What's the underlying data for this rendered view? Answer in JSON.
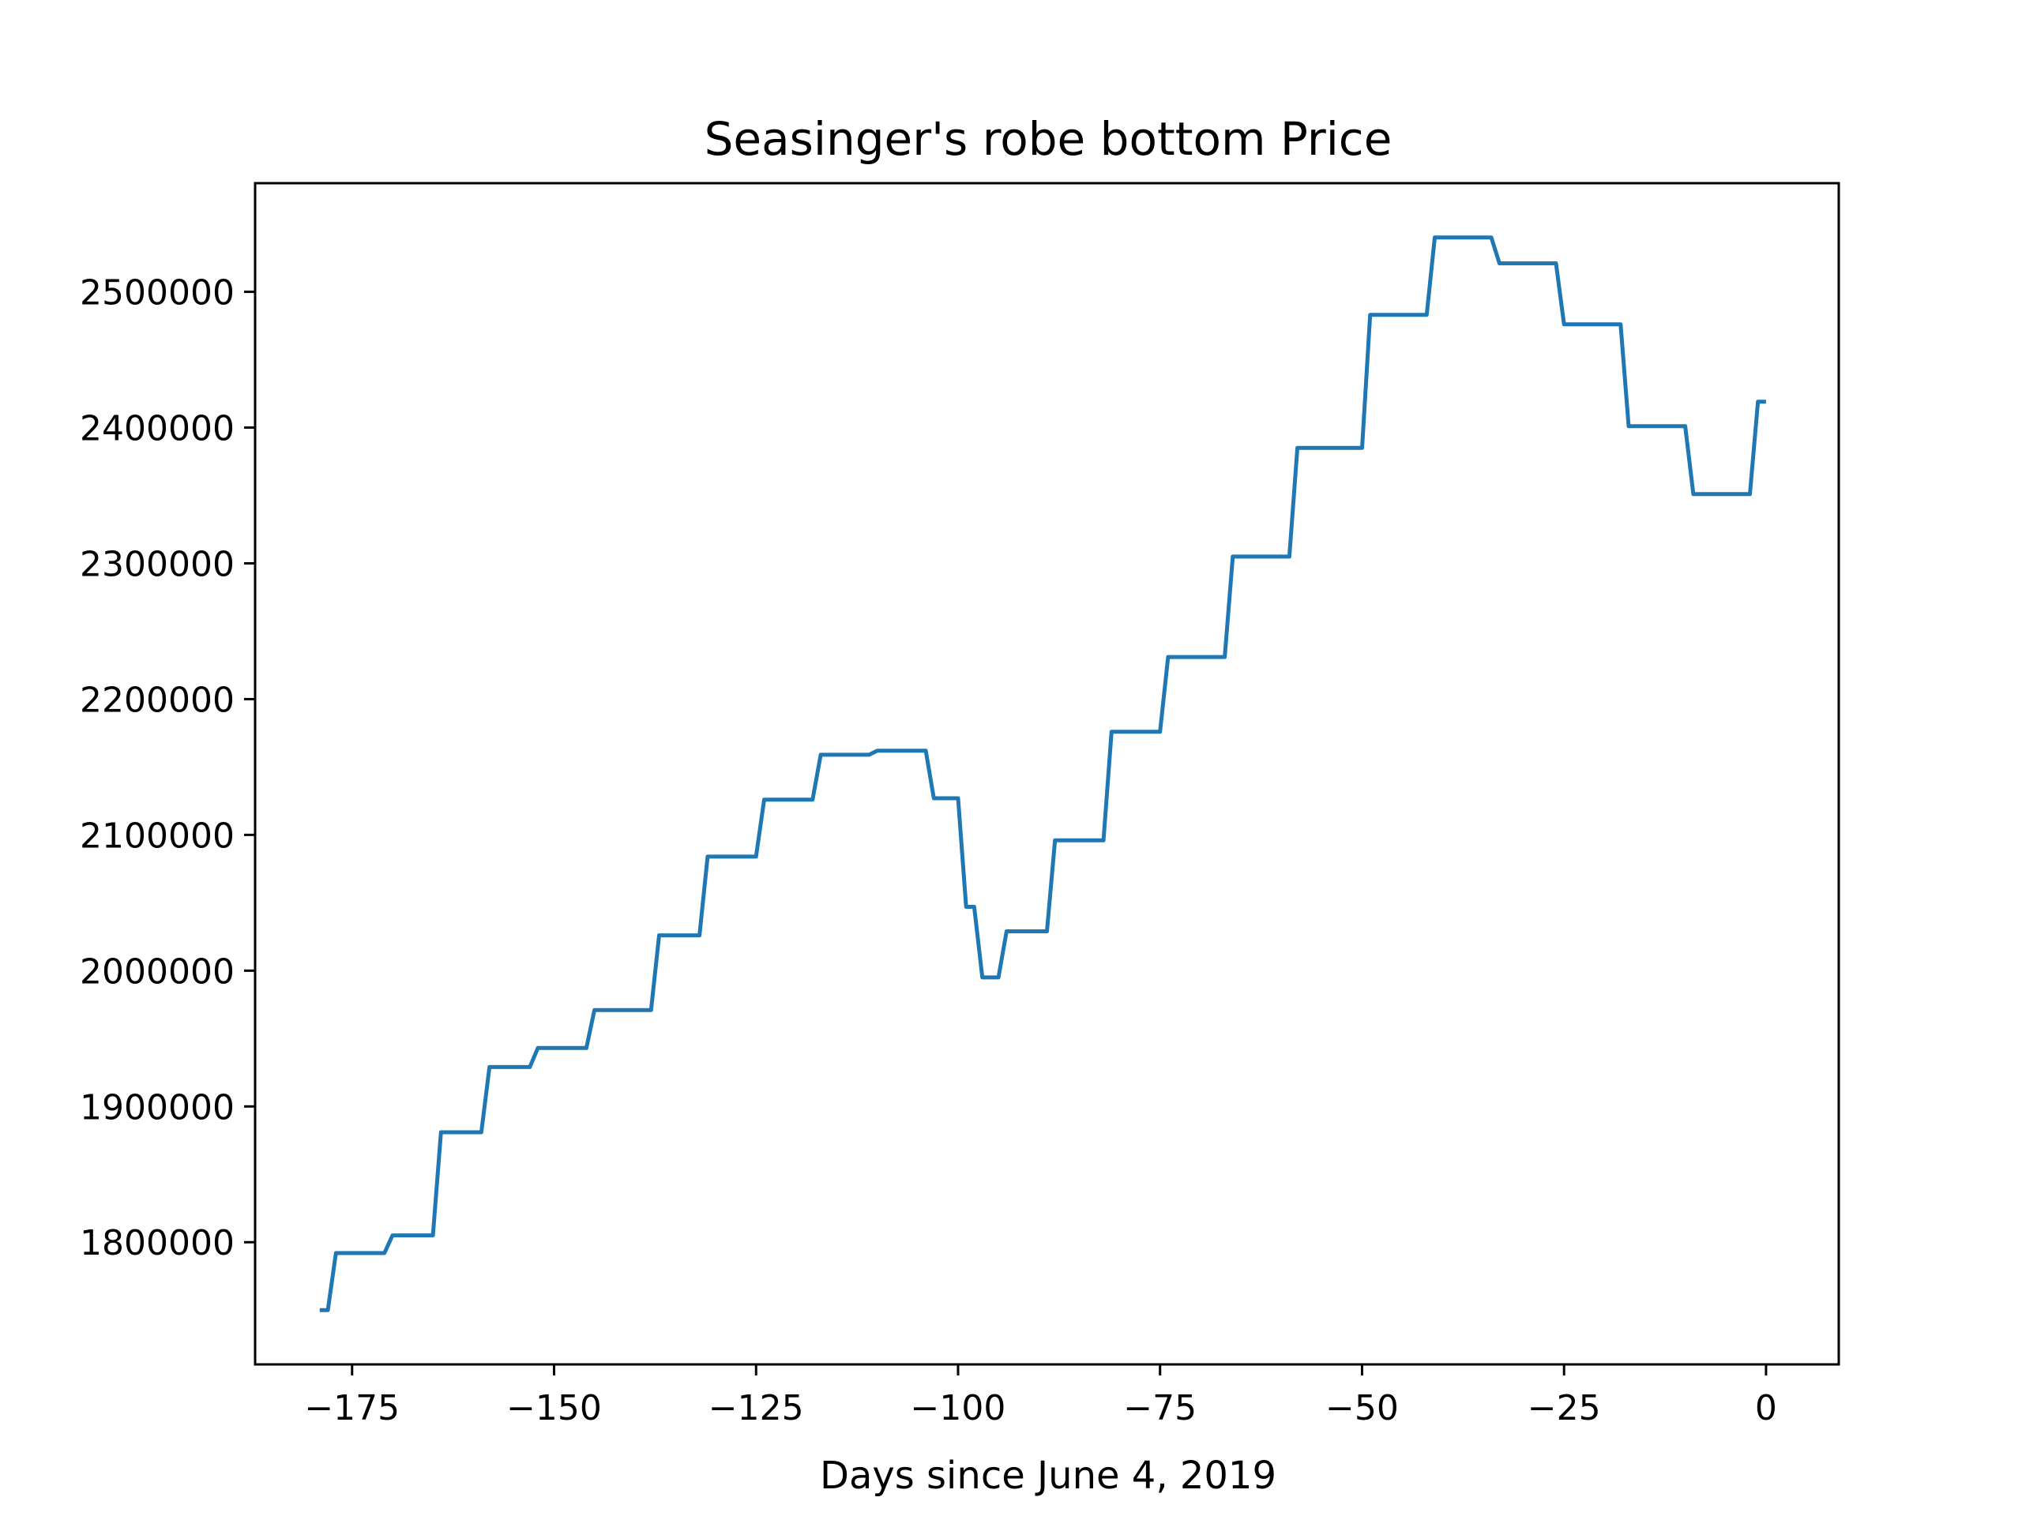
{
  "chart_data": {
    "type": "line",
    "title": "Seasinger's robe bottom Price",
    "xlabel": "Days since June 4, 2019",
    "ylabel": "",
    "xlim": [
      -187,
      9
    ],
    "ylim": [
      1710000,
      2580000
    ],
    "x_ticks": [
      -175,
      -150,
      -125,
      -100,
      -75,
      -50,
      -25,
      0
    ],
    "x_tick_labels": [
      "−175",
      "−150",
      "−125",
      "−100",
      "−75",
      "−50",
      "−25",
      "0"
    ],
    "y_ticks": [
      1800000,
      1900000,
      2000000,
      2100000,
      2200000,
      2300000,
      2400000,
      2500000
    ],
    "y_tick_labels": [
      "1800000",
      "1900000",
      "2000000",
      "2100000",
      "2200000",
      "2300000",
      "2400000",
      "2500000"
    ],
    "grid": false,
    "line_color": "#1f77b4",
    "series": [
      {
        "x": [
          -179,
          -178,
          -177,
          -171,
          -170,
          -165,
          -164,
          -159,
          -158,
          -153,
          -152,
          -146,
          -145,
          -138,
          -137,
          -132,
          -131,
          -125,
          -124,
          -118,
          -117,
          -111,
          -110,
          -104,
          -103,
          -100,
          -99,
          -98,
          -97,
          -95,
          -94,
          -89,
          -88,
          -82,
          -81,
          -75,
          -74,
          -67,
          -66,
          -59,
          -58,
          -50,
          -49,
          -42,
          -41,
          -34,
          -33,
          -26,
          -25,
          -18,
          -17,
          -10,
          -9,
          -2,
          -1,
          0
        ],
        "y": [
          1750000,
          1750000,
          1792000,
          1792000,
          1805000,
          1805000,
          1881000,
          1881000,
          1929000,
          1929000,
          1943000,
          1943000,
          1971000,
          1971000,
          2026000,
          2026000,
          2084000,
          2084000,
          2126000,
          2126000,
          2159000,
          2159000,
          2162000,
          2162000,
          2127000,
          2127000,
          2047000,
          2047000,
          1995000,
          1995000,
          2029000,
          2029000,
          2096000,
          2096000,
          2176000,
          2176000,
          2231000,
          2231000,
          2305000,
          2305000,
          2385000,
          2385000,
          2483000,
          2483000,
          2540000,
          2540000,
          2521000,
          2521000,
          2476000,
          2476000,
          2401000,
          2401000,
          2351000,
          2351000,
          2419000,
          2419000
        ]
      }
    ]
  }
}
